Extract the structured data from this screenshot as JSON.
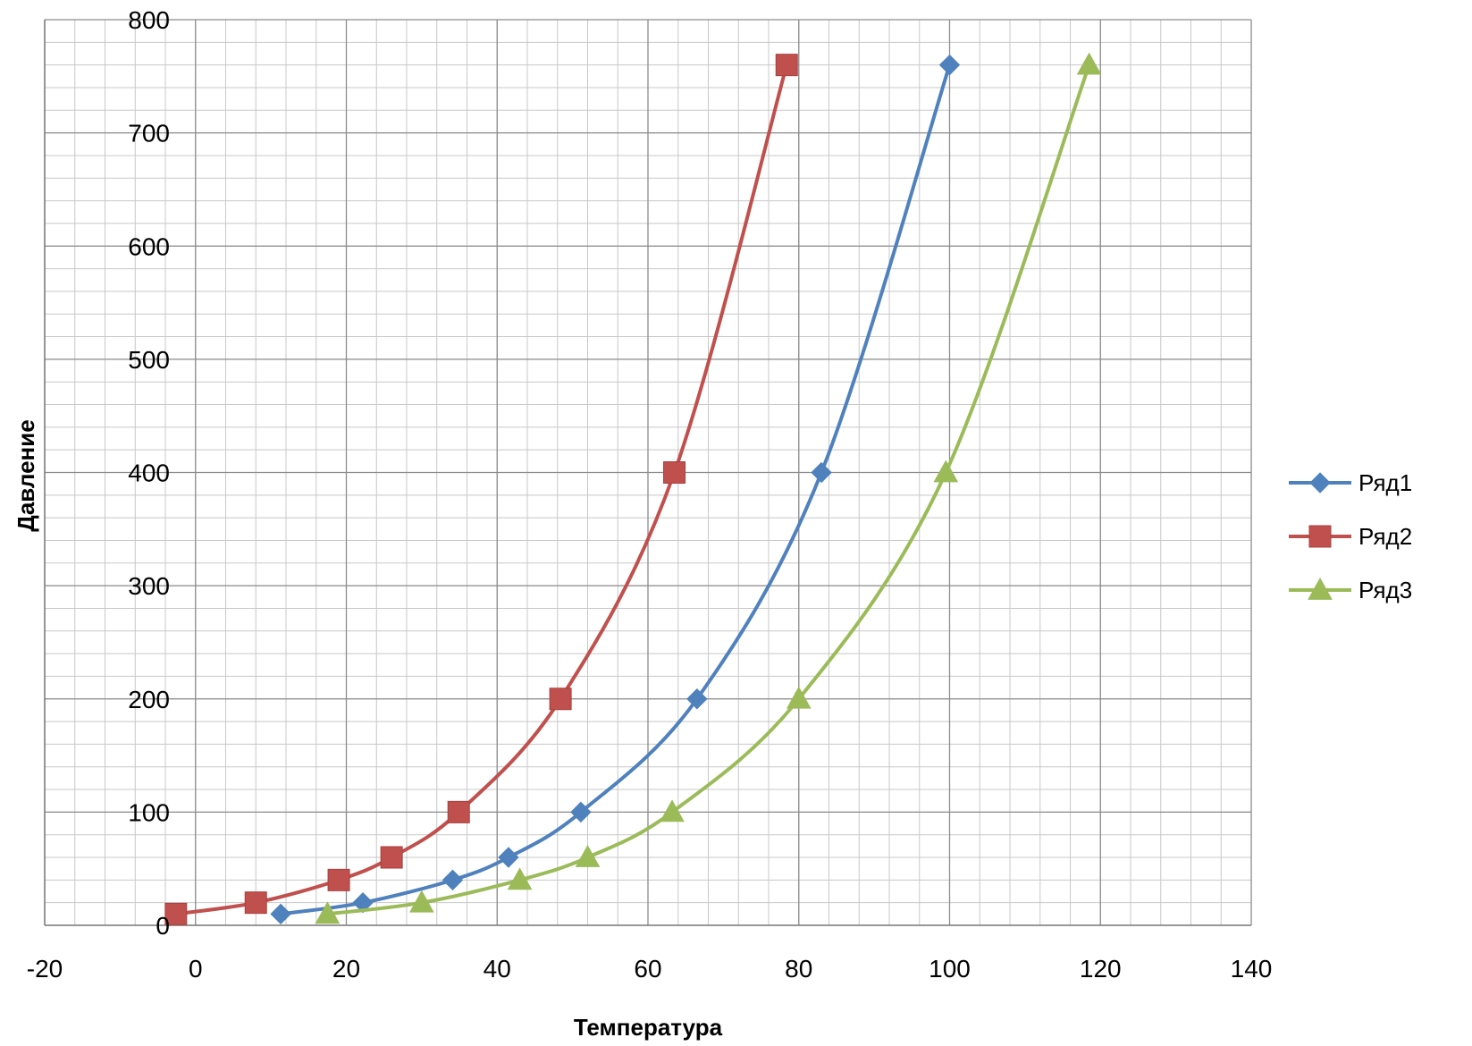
{
  "chart_data": {
    "type": "scatter",
    "title": "",
    "xlabel": "Температура",
    "ylabel": "Давление",
    "xlim": [
      -20,
      140
    ],
    "ylim": [
      0,
      800
    ],
    "xticks": [
      -20,
      0,
      20,
      40,
      60,
      80,
      100,
      120,
      140
    ],
    "yticks": [
      0,
      100,
      200,
      300,
      400,
      500,
      600,
      700,
      800
    ],
    "x_minor_step": 4,
    "y_minor_step": 20,
    "grid": true,
    "legend_position": "right",
    "series": [
      {
        "name": "Ряд1",
        "color": "#4F81BD",
        "marker": "diamond",
        "x": [
          11.3,
          22.2,
          34.1,
          41.5,
          51.1,
          66.5,
          83.0,
          100.0
        ],
        "y": [
          10,
          20,
          40,
          60,
          100,
          200,
          400,
          760
        ]
      },
      {
        "name": "Ряд2",
        "color": "#C0504D",
        "marker": "square",
        "x": [
          -2.6,
          8.0,
          19.0,
          26.0,
          34.9,
          48.4,
          63.5,
          78.4
        ],
        "y": [
          10,
          20,
          40,
          60,
          100,
          200,
          400,
          760
        ]
      },
      {
        "name": "Ряд3",
        "color": "#9BBB59",
        "marker": "triangle",
        "x": [
          17.5,
          30.0,
          43.0,
          52.0,
          63.2,
          80.0,
          99.5,
          118.5
        ],
        "y": [
          10,
          20,
          40,
          60,
          100,
          200,
          400,
          760
        ]
      }
    ]
  }
}
